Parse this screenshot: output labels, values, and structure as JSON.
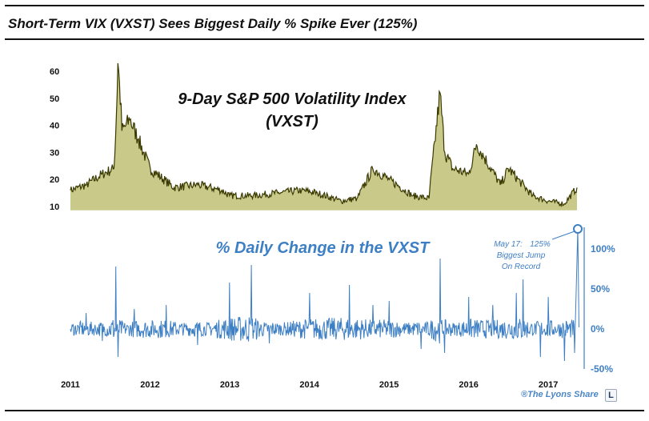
{
  "title": "Short-Term VIX (VXST) Sees Biggest Daily % Spike Ever (125%)",
  "credit": "®The Lyons Share",
  "logo_text": "L",
  "colors": {
    "vxst_line": "#3a3a00",
    "vxst_fill": "#9c9c2a",
    "change_line": "#3d7fc4",
    "axis_text_top": "#111111",
    "axis_text_bottom": "#3d7fc4"
  },
  "chart_data": [
    {
      "type": "line",
      "title": "9-Day S&P 500 Volatility Index",
      "title_line2": "(VXST)",
      "ylim": [
        8,
        66
      ],
      "yticks": [
        "10",
        "20",
        "30",
        "40",
        "50",
        "60"
      ],
      "x": [
        2011.0,
        2011.2,
        2011.4,
        2011.55,
        2011.6,
        2011.65,
        2011.75,
        2011.85,
        2012.0,
        2012.3,
        2012.6,
        2012.9,
        2013.0,
        2013.3,
        2013.6,
        2013.9,
        2014.1,
        2014.4,
        2014.6,
        2014.8,
        2015.0,
        2015.3,
        2015.5,
        2015.64,
        2015.7,
        2015.8,
        2016.0,
        2016.1,
        2016.4,
        2016.5,
        2016.8,
        2017.0,
        2017.2,
        2017.36
      ],
      "series": [
        {
          "values": [
            16,
            18,
            22,
            24,
            63,
            38,
            42,
            35,
            24,
            17,
            18,
            16,
            14,
            14,
            15,
            16,
            15,
            12,
            13,
            24,
            20,
            14,
            13,
            52,
            30,
            24,
            22,
            33,
            18,
            24,
            14,
            12,
            11,
            17
          ]
        }
      ]
    },
    {
      "type": "line",
      "title": "% Daily Change in the VXST",
      "ylim": [
        -50,
        130
      ],
      "yticks": [
        "100%",
        "50%",
        "0%",
        "-50%"
      ],
      "x": [
        2011.0,
        2011.2,
        2011.4,
        2011.57,
        2011.6,
        2011.8,
        2012.2,
        2012.6,
        2013.0,
        2013.27,
        2013.5,
        2014.0,
        2014.5,
        2014.8,
        2015.0,
        2015.4,
        2015.64,
        2015.7,
        2016.0,
        2016.3,
        2016.6,
        2016.68,
        2016.9,
        2017.0,
        2017.2,
        2017.33,
        2017.37
      ],
      "series": [
        {
          "values": [
            0,
            20,
            -15,
            78,
            -35,
            25,
            30,
            -20,
            58,
            80,
            -18,
            45,
            55,
            30,
            35,
            -25,
            88,
            -30,
            40,
            30,
            45,
            62,
            -35,
            40,
            -40,
            -30,
            125
          ]
        }
      ],
      "annotation": {
        "date": "May 17:",
        "value": "125%",
        "line2": "Biggest Jump",
        "line3": "On Record"
      }
    }
  ],
  "x_axis": {
    "ticks": [
      "2011",
      "2012",
      "2013",
      "2014",
      "2015",
      "2016",
      "2017"
    ]
  }
}
